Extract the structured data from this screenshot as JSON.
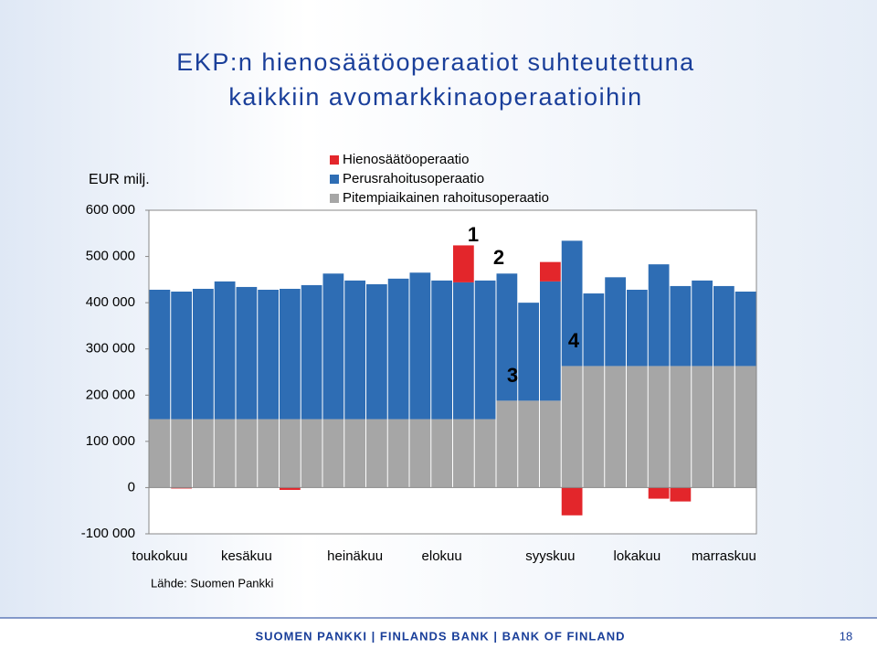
{
  "chart_data": {
    "type": "stacked-bar",
    "title_lines": [
      "EKP:n hienosäätöoperaatiot suhteutettuna",
      "kaikkiin avomarkkinaoperaatioihin"
    ],
    "y_label": "EUR milj.",
    "source": "Lähde: Suomen Pankki",
    "categories": [
      "toukokuu",
      null,
      null,
      null,
      "kesäkuu",
      null,
      null,
      null,
      null,
      "heinäkuu",
      null,
      null,
      null,
      "elokuu",
      null,
      null,
      null,
      null,
      "syyskuu",
      null,
      null,
      null,
      "lokakuu",
      null,
      null,
      null,
      "marraskuu",
      null
    ],
    "series": [
      {
        "name": "Pitempiaikainen rahoitusoperaatio",
        "color": "#a6a6a6",
        "values": [
          148000,
          148000,
          148000,
          148000,
          148000,
          148000,
          148000,
          148000,
          148000,
          148000,
          148000,
          148000,
          148000,
          148000,
          148000,
          148000,
          188000,
          188000,
          188000,
          263000,
          263000,
          263000,
          263000,
          263000,
          263000,
          263000,
          263000,
          263000
        ]
      },
      {
        "name": "Perusrahoitusoperaatio",
        "color": "#2e6db4",
        "values": [
          280000,
          276000,
          282000,
          298000,
          286000,
          280000,
          282000,
          290000,
          315000,
          300000,
          292000,
          304000,
          317000,
          300000,
          296000,
          300000,
          275000,
          212000,
          258000,
          271000,
          157000,
          192000,
          165000,
          220000,
          173000,
          185000,
          173000,
          161000
        ]
      },
      {
        "name": "Hienosäätöoperaatio",
        "color": "#e3262b",
        "values": [
          0,
          -2000,
          0,
          0,
          0,
          0,
          -5000,
          0,
          0,
          0,
          0,
          0,
          0,
          0,
          80000,
          0,
          0,
          0,
          42000,
          -60000,
          0,
          0,
          0,
          -24000,
          -30000,
          0,
          0,
          0
        ]
      }
    ],
    "ylim": [
      -100000,
      600000
    ],
    "yticks": [
      {
        "value": -100000,
        "label": "-100 000"
      },
      0,
      {
        "value": 100000,
        "label": "100 000"
      },
      {
        "value": 200000,
        "label": "200 000"
      },
      {
        "value": 300000,
        "label": "300 000"
      },
      {
        "value": 400000,
        "label": "400 000"
      },
      {
        "value": 500000,
        "label": "500 000"
      },
      {
        "value": 600000,
        "label": "600 000"
      }
    ],
    "annotations": [
      "1",
      "2",
      "3",
      "4"
    ]
  },
  "footer": {
    "text": "SUOMEN PANKKI | FINLANDS BANK | BANK OF FINLAND",
    "page": "18"
  }
}
